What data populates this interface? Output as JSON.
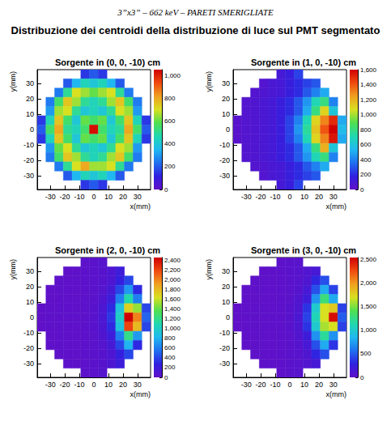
{
  "header": "3”x3” – 662 keV – PARETI SMERIGLIATE",
  "title": "Distribuzione dei centroidi della distribuzione di luce sul PMT segmentato",
  "chart_data": [
    {
      "type": "heatmap",
      "title": "Sorgente in (0, 0, -10) cm",
      "x_label": "x(mm)",
      "y_label": "y(mm)",
      "x": [
        -36,
        -30,
        -24,
        -18,
        -12,
        -6,
        0,
        6,
        12,
        18,
        24,
        30,
        36
      ],
      "y": [
        36,
        30,
        24,
        18,
        12,
        6,
        0,
        -6,
        -12,
        -18,
        -24,
        -30,
        -36
      ],
      "cells": [
        [
          null,
          null,
          null,
          null,
          null,
          150,
          200,
          150,
          null,
          null,
          null,
          null,
          null
        ],
        [
          null,
          null,
          null,
          200,
          350,
          450,
          400,
          450,
          350,
          200,
          null,
          null,
          null
        ],
        [
          null,
          null,
          250,
          500,
          700,
          650,
          600,
          650,
          700,
          500,
          250,
          null,
          null
        ],
        [
          null,
          250,
          550,
          750,
          650,
          500,
          450,
          500,
          650,
          750,
          550,
          250,
          null
        ],
        [
          null,
          300,
          650,
          700,
          500,
          400,
          450,
          400,
          500,
          700,
          650,
          300,
          null
        ],
        [
          150,
          450,
          750,
          550,
          400,
          600,
          550,
          600,
          400,
          550,
          750,
          450,
          150
        ],
        [
          200,
          550,
          800,
          500,
          450,
          550,
          1030,
          550,
          450,
          500,
          800,
          550,
          200
        ],
        [
          150,
          450,
          750,
          550,
          400,
          600,
          550,
          600,
          400,
          550,
          750,
          450,
          150
        ],
        [
          null,
          300,
          600,
          700,
          500,
          400,
          450,
          400,
          500,
          700,
          650,
          300,
          null
        ],
        [
          null,
          250,
          550,
          750,
          650,
          500,
          450,
          500,
          650,
          750,
          550,
          250,
          null
        ],
        [
          null,
          null,
          250,
          500,
          700,
          800,
          650,
          650,
          700,
          500,
          250,
          null,
          null
        ],
        [
          null,
          null,
          null,
          200,
          350,
          450,
          400,
          450,
          350,
          200,
          null,
          null,
          null
        ],
        [
          null,
          null,
          null,
          null,
          null,
          150,
          200,
          150,
          null,
          null,
          null,
          null,
          null
        ]
      ],
      "xlim": [
        -39,
        39
      ],
      "xticks": [
        -30,
        -20,
        -10,
        0,
        10,
        20,
        30
      ],
      "ylim": [
        -39,
        39
      ],
      "yticks": [
        -30,
        -20,
        -10,
        0,
        10,
        20,
        30
      ],
      "colorbar_range": [
        0,
        1050
      ],
      "colorbar_ticks": [
        0,
        200,
        400,
        600,
        800,
        1000
      ]
    },
    {
      "type": "heatmap",
      "title": "Sorgente in (1, 0, -10) cm",
      "x_label": "x(mm)",
      "y_label": "y(mm)",
      "x": [
        -36,
        -30,
        -24,
        -18,
        -12,
        -6,
        0,
        6,
        12,
        18,
        24,
        30,
        36
      ],
      "y": [
        36,
        30,
        24,
        18,
        12,
        6,
        0,
        -6,
        -12,
        -18,
        -24,
        -30,
        -36
      ],
      "cells": [
        [
          null,
          null,
          null,
          null,
          null,
          100,
          150,
          250,
          null,
          null,
          null,
          null,
          null
        ],
        [
          null,
          null,
          null,
          50,
          80,
          100,
          150,
          200,
          250,
          300,
          null,
          null,
          null
        ],
        [
          null,
          null,
          50,
          60,
          80,
          100,
          150,
          200,
          300,
          400,
          500,
          null,
          null
        ],
        [
          null,
          50,
          60,
          80,
          100,
          150,
          200,
          300,
          450,
          700,
          800,
          400,
          null
        ],
        [
          null,
          50,
          60,
          80,
          100,
          150,
          200,
          300,
          500,
          800,
          1100,
          600,
          null
        ],
        [
          30,
          50,
          60,
          80,
          100,
          150,
          250,
          400,
          700,
          1100,
          1300,
          1500,
          500
        ],
        [
          30,
          50,
          60,
          80,
          100,
          150,
          250,
          450,
          750,
          1150,
          1400,
          1600,
          550
        ],
        [
          30,
          50,
          60,
          80,
          100,
          150,
          250,
          400,
          700,
          1100,
          1300,
          1550,
          500
        ],
        [
          null,
          50,
          60,
          80,
          100,
          150,
          200,
          300,
          500,
          800,
          1200,
          600,
          null
        ],
        [
          null,
          50,
          60,
          80,
          100,
          150,
          200,
          300,
          450,
          700,
          800,
          400,
          null
        ],
        [
          null,
          null,
          50,
          60,
          80,
          100,
          150,
          200,
          300,
          400,
          500,
          null,
          null
        ],
        [
          null,
          null,
          null,
          50,
          80,
          100,
          150,
          200,
          250,
          300,
          null,
          null,
          null
        ],
        [
          null,
          null,
          null,
          null,
          null,
          100,
          150,
          250,
          null,
          null,
          null,
          null,
          null
        ]
      ],
      "xlim": [
        -39,
        39
      ],
      "xticks": [
        -30,
        -20,
        -10,
        0,
        10,
        20,
        30
      ],
      "ylim": [
        -39,
        39
      ],
      "yticks": [
        -30,
        -20,
        -10,
        0,
        10,
        20,
        30
      ],
      "colorbar_range": [
        0,
        1600
      ],
      "colorbar_ticks": [
        0,
        200,
        400,
        600,
        800,
        1000,
        1200,
        1400,
        1600
      ]
    },
    {
      "type": "heatmap",
      "title": "Sorgente in (2, 0, -10) cm",
      "x_label": "x(mm)",
      "y_label": "y(mm)",
      "x": [
        -36,
        -30,
        -24,
        -18,
        -12,
        -6,
        0,
        6,
        12,
        18,
        24,
        30,
        36
      ],
      "y": [
        36,
        30,
        24,
        18,
        12,
        6,
        0,
        -6,
        -12,
        -18,
        -24,
        -30,
        -36
      ],
      "cells": [
        [
          null,
          null,
          null,
          null,
          null,
          20,
          30,
          60,
          null,
          null,
          null,
          null,
          null
        ],
        [
          null,
          null,
          null,
          10,
          10,
          20,
          30,
          50,
          100,
          200,
          null,
          null,
          null
        ],
        [
          null,
          null,
          10,
          10,
          10,
          20,
          30,
          50,
          100,
          250,
          400,
          null,
          null
        ],
        [
          null,
          10,
          10,
          10,
          10,
          20,
          30,
          60,
          150,
          400,
          700,
          300,
          null
        ],
        [
          null,
          10,
          10,
          10,
          10,
          20,
          30,
          80,
          200,
          600,
          1100,
          600,
          null
        ],
        [
          5,
          10,
          10,
          10,
          10,
          20,
          40,
          100,
          300,
          900,
          1700,
          1500,
          400
        ],
        [
          5,
          10,
          10,
          10,
          10,
          20,
          40,
          120,
          350,
          1000,
          2450,
          2000,
          500
        ],
        [
          5,
          10,
          10,
          10,
          10,
          20,
          40,
          100,
          300,
          900,
          2200,
          1800,
          400
        ],
        [
          null,
          10,
          10,
          10,
          10,
          20,
          30,
          80,
          200,
          600,
          1200,
          700,
          null
        ],
        [
          null,
          10,
          10,
          10,
          10,
          20,
          30,
          60,
          150,
          400,
          800,
          300,
          null
        ],
        [
          null,
          null,
          10,
          10,
          10,
          20,
          30,
          50,
          100,
          250,
          400,
          null,
          null
        ],
        [
          null,
          null,
          null,
          10,
          10,
          20,
          30,
          50,
          100,
          200,
          null,
          null,
          null
        ],
        [
          null,
          null,
          null,
          null,
          null,
          20,
          30,
          60,
          null,
          null,
          null,
          null,
          null
        ]
      ],
      "xlim": [
        -39,
        39
      ],
      "xticks": [
        -30,
        -20,
        -10,
        0,
        10,
        20,
        30
      ],
      "ylim": [
        -39,
        39
      ],
      "yticks": [
        -30,
        -20,
        -10,
        0,
        10,
        20,
        30
      ],
      "colorbar_range": [
        0,
        2450
      ],
      "colorbar_ticks": [
        0,
        200,
        400,
        600,
        800,
        1000,
        1200,
        1400,
        1600,
        1800,
        2000,
        2200,
        2400
      ]
    },
    {
      "type": "heatmap",
      "title": "Sorgente in (3, 0, -10) cm",
      "x_label": "x(mm)",
      "y_label": "y(mm)",
      "x": [
        -36,
        -30,
        -24,
        -18,
        -12,
        -6,
        0,
        6,
        12,
        18,
        24,
        30,
        36
      ],
      "y": [
        36,
        30,
        24,
        18,
        12,
        6,
        0,
        -6,
        -12,
        -18,
        -24,
        -30,
        -36
      ],
      "cells": [
        [
          null,
          null,
          null,
          null,
          null,
          20,
          30,
          50,
          null,
          null,
          null,
          null,
          null
        ],
        [
          null,
          null,
          null,
          10,
          10,
          20,
          30,
          50,
          80,
          150,
          null,
          null,
          null
        ],
        [
          null,
          null,
          10,
          10,
          10,
          20,
          30,
          50,
          100,
          300,
          450,
          null,
          null
        ],
        [
          null,
          10,
          10,
          10,
          10,
          20,
          30,
          60,
          150,
          450,
          800,
          400,
          null
        ],
        [
          null,
          10,
          10,
          10,
          10,
          20,
          30,
          80,
          200,
          700,
          1300,
          800,
          null
        ],
        [
          5,
          10,
          10,
          10,
          10,
          20,
          40,
          100,
          350,
          1000,
          1700,
          1800,
          400
        ],
        [
          5,
          10,
          10,
          10,
          10,
          20,
          40,
          120,
          400,
          1100,
          1700,
          2500,
          500
        ],
        [
          5,
          10,
          10,
          10,
          10,
          20,
          40,
          100,
          350,
          1000,
          1600,
          1700,
          400
        ],
        [
          null,
          10,
          10,
          10,
          10,
          20,
          30,
          80,
          200,
          700,
          1200,
          700,
          null
        ],
        [
          null,
          10,
          10,
          10,
          10,
          20,
          30,
          60,
          150,
          450,
          800,
          350,
          null
        ],
        [
          null,
          null,
          10,
          10,
          10,
          20,
          30,
          50,
          100,
          300,
          450,
          null,
          null
        ],
        [
          null,
          null,
          null,
          10,
          10,
          20,
          30,
          50,
          80,
          150,
          null,
          null,
          null
        ],
        [
          null,
          null,
          null,
          null,
          null,
          20,
          30,
          50,
          null,
          null,
          null,
          null,
          null
        ]
      ],
      "xlim": [
        -39,
        39
      ],
      "xticks": [
        -30,
        -20,
        -10,
        0,
        10,
        20,
        30
      ],
      "ylim": [
        -39,
        39
      ],
      "yticks": [
        -30,
        -20,
        -10,
        0,
        10,
        20,
        30
      ],
      "colorbar_range": [
        0,
        2550
      ],
      "colorbar_ticks": [
        0,
        500,
        1000,
        1500,
        2000,
        2500
      ]
    }
  ]
}
